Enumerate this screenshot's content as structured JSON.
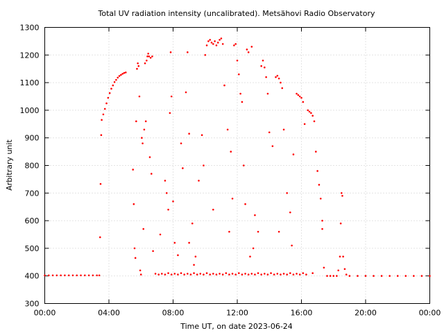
{
  "chart_data": {
    "type": "scatter",
    "title": "Total UV radiation intensity (uncalibrated). Metsähovi Radio Observatory",
    "xlabel": "Time UT, on date 2023-06-24",
    "ylabel": "Arbitrary unit",
    "xlim": [
      0,
      24
    ],
    "ylim": [
      300,
      1300
    ],
    "x_ticks": [
      0,
      4,
      8,
      12,
      16,
      20,
      24
    ],
    "x_tick_labels": [
      "00:00",
      "04:00",
      "08:00",
      "12:00",
      "16:00",
      "20:00",
      "00:00"
    ],
    "y_ticks": [
      300,
      400,
      500,
      600,
      700,
      800,
      900,
      1000,
      1100,
      1200,
      1300
    ],
    "y_tick_labels": [
      "300",
      "400",
      "500",
      "600",
      "700",
      "800",
      "900",
      "1000",
      "1100",
      "1200",
      "1300"
    ],
    "grid": true,
    "marker_color": "#ff0000",
    "series": [
      {
        "points": [
          [
            0.0,
            402
          ],
          [
            0.25,
            402
          ],
          [
            0.5,
            402
          ],
          [
            0.75,
            402
          ],
          [
            1.0,
            402
          ],
          [
            1.25,
            402
          ],
          [
            1.5,
            402
          ],
          [
            1.75,
            402
          ],
          [
            2.0,
            402
          ],
          [
            2.25,
            402
          ],
          [
            2.5,
            402
          ],
          [
            2.75,
            402
          ],
          [
            3.0,
            402
          ],
          [
            3.25,
            402
          ],
          [
            3.4,
            402
          ],
          [
            3.45,
            540
          ],
          [
            3.48,
            733
          ],
          [
            3.52,
            910
          ],
          [
            3.55,
            965
          ],
          [
            3.65,
            985
          ],
          [
            3.75,
            1005
          ],
          [
            3.85,
            1025
          ],
          [
            3.95,
            1045
          ],
          [
            4.05,
            1062
          ],
          [
            4.15,
            1078
          ],
          [
            4.25,
            1090
          ],
          [
            4.35,
            1102
          ],
          [
            4.45,
            1110
          ],
          [
            4.55,
            1118
          ],
          [
            4.65,
            1124
          ],
          [
            4.75,
            1128
          ],
          [
            4.85,
            1132
          ],
          [
            4.95,
            1135
          ],
          [
            5.05,
            1137
          ],
          [
            5.5,
            785
          ],
          [
            5.55,
            660
          ],
          [
            5.6,
            500
          ],
          [
            5.65,
            465
          ],
          [
            5.7,
            960
          ],
          [
            5.75,
            1150
          ],
          [
            5.8,
            1170
          ],
          [
            5.85,
            1160
          ],
          [
            5.9,
            1050
          ],
          [
            5.95,
            420
          ],
          [
            6.0,
            405
          ],
          [
            6.05,
            900
          ],
          [
            6.1,
            880
          ],
          [
            6.15,
            570
          ],
          [
            6.2,
            930
          ],
          [
            6.25,
            1170
          ],
          [
            6.3,
            960
          ],
          [
            6.35,
            1180
          ],
          [
            6.4,
            1195
          ],
          [
            6.45,
            1205
          ],
          [
            6.5,
            1195
          ],
          [
            6.6,
            1190
          ],
          [
            6.7,
            1195
          ],
          [
            6.55,
            830
          ],
          [
            6.65,
            770
          ],
          [
            6.75,
            490
          ],
          [
            6.9,
            408
          ],
          [
            7.1,
            405
          ],
          [
            7.3,
            408
          ],
          [
            7.5,
            405
          ],
          [
            7.7,
            410
          ],
          [
            7.9,
            405
          ],
          [
            8.1,
            408
          ],
          [
            8.3,
            405
          ],
          [
            8.5,
            410
          ],
          [
            8.7,
            405
          ],
          [
            8.9,
            408
          ],
          [
            9.1,
            405
          ],
          [
            9.3,
            410
          ],
          [
            9.5,
            405
          ],
          [
            9.7,
            408
          ],
          [
            9.9,
            405
          ],
          [
            10.1,
            410
          ],
          [
            10.3,
            405
          ],
          [
            10.5,
            408
          ],
          [
            10.7,
            405
          ],
          [
            10.9,
            408
          ],
          [
            11.1,
            405
          ],
          [
            11.3,
            410
          ],
          [
            11.5,
            405
          ],
          [
            11.7,
            408
          ],
          [
            11.9,
            405
          ],
          [
            12.1,
            410
          ],
          [
            12.3,
            405
          ],
          [
            12.5,
            408
          ],
          [
            12.7,
            405
          ],
          [
            12.9,
            408
          ],
          [
            13.1,
            405
          ],
          [
            13.3,
            410
          ],
          [
            13.5,
            405
          ],
          [
            13.7,
            408
          ],
          [
            13.9,
            405
          ],
          [
            14.1,
            410
          ],
          [
            14.3,
            405
          ],
          [
            14.5,
            408
          ],
          [
            14.7,
            405
          ],
          [
            14.9,
            408
          ],
          [
            15.1,
            405
          ],
          [
            15.3,
            410
          ],
          [
            15.5,
            405
          ],
          [
            15.7,
            408
          ],
          [
            15.9,
            405
          ],
          [
            16.1,
            410
          ],
          [
            16.3,
            405
          ],
          [
            7.2,
            550
          ],
          [
            7.5,
            745
          ],
          [
            7.6,
            700
          ],
          [
            7.7,
            640
          ],
          [
            7.8,
            990
          ],
          [
            7.85,
            1210
          ],
          [
            7.9,
            1050
          ],
          [
            8.0,
            670
          ],
          [
            8.1,
            520
          ],
          [
            8.3,
            475
          ],
          [
            8.5,
            880
          ],
          [
            8.6,
            790
          ],
          [
            8.8,
            1065
          ],
          [
            8.9,
            1210
          ],
          [
            9.0,
            915
          ],
          [
            9.2,
            590
          ],
          [
            9.4,
            470
          ],
          [
            9.6,
            745
          ],
          [
            9.8,
            910
          ],
          [
            9.9,
            800
          ],
          [
            10.0,
            1200
          ],
          [
            10.1,
            1235
          ],
          [
            10.2,
            1250
          ],
          [
            10.3,
            1255
          ],
          [
            10.4,
            1245
          ],
          [
            10.5,
            1240
          ],
          [
            10.6,
            1250
          ],
          [
            10.7,
            1235
          ],
          [
            10.8,
            1245
          ],
          [
            10.9,
            1255
          ],
          [
            11.0,
            1260
          ],
          [
            11.1,
            1240
          ],
          [
            11.2,
            1090
          ],
          [
            11.4,
            930
          ],
          [
            11.6,
            850
          ],
          [
            11.7,
            680
          ],
          [
            11.8,
            1235
          ],
          [
            11.9,
            1240
          ],
          [
            12.0,
            1180
          ],
          [
            12.1,
            1130
          ],
          [
            12.2,
            1060
          ],
          [
            12.3,
            1030
          ],
          [
            12.4,
            800
          ],
          [
            12.5,
            660
          ],
          [
            12.6,
            1220
          ],
          [
            12.7,
            1210
          ],
          [
            12.9,
            1230
          ],
          [
            13.1,
            620
          ],
          [
            13.3,
            560
          ],
          [
            13.5,
            1160
          ],
          [
            13.6,
            1180
          ],
          [
            13.7,
            1155
          ],
          [
            13.8,
            1120
          ],
          [
            13.9,
            1060
          ],
          [
            14.0,
            920
          ],
          [
            14.2,
            870
          ],
          [
            14.4,
            1120
          ],
          [
            14.5,
            1125
          ],
          [
            14.6,
            1115
          ],
          [
            14.7,
            1100
          ],
          [
            14.8,
            1080
          ],
          [
            14.9,
            930
          ],
          [
            15.1,
            700
          ],
          [
            15.3,
            630
          ],
          [
            15.5,
            840
          ],
          [
            15.7,
            1060
          ],
          [
            15.8,
            1055
          ],
          [
            15.9,
            1050
          ],
          [
            16.0,
            1045
          ],
          [
            16.1,
            1030
          ],
          [
            16.2,
            950
          ],
          [
            16.4,
            1000
          ],
          [
            16.5,
            995
          ],
          [
            16.6,
            990
          ],
          [
            16.7,
            980
          ],
          [
            16.8,
            960
          ],
          [
            16.9,
            850
          ],
          [
            17.0,
            780
          ],
          [
            17.1,
            730
          ],
          [
            17.2,
            680
          ],
          [
            17.3,
            600
          ],
          [
            17.4,
            430
          ],
          [
            9.0,
            520
          ],
          [
            9.3,
            440
          ],
          [
            10.5,
            640
          ],
          [
            11.5,
            560
          ],
          [
            12.8,
            470
          ],
          [
            13.0,
            500
          ],
          [
            14.6,
            560
          ],
          [
            15.4,
            510
          ],
          [
            16.7,
            410
          ],
          [
            17.3,
            570
          ],
          [
            17.6,
            400
          ],
          [
            17.8,
            400
          ],
          [
            18.0,
            400
          ],
          [
            18.2,
            400
          ],
          [
            18.3,
            420
          ],
          [
            18.4,
            470
          ],
          [
            18.45,
            590
          ],
          [
            18.5,
            700
          ],
          [
            18.55,
            690
          ],
          [
            18.6,
            470
          ],
          [
            18.7,
            425
          ],
          [
            18.8,
            405
          ],
          [
            19.0,
            400
          ],
          [
            19.5,
            400
          ],
          [
            20.0,
            400
          ],
          [
            20.5,
            400
          ],
          [
            21.0,
            400
          ],
          [
            21.5,
            400
          ],
          [
            22.0,
            400
          ],
          [
            22.5,
            400
          ],
          [
            23.0,
            400
          ],
          [
            23.5,
            400
          ],
          [
            24.0,
            400
          ]
        ]
      }
    ]
  }
}
